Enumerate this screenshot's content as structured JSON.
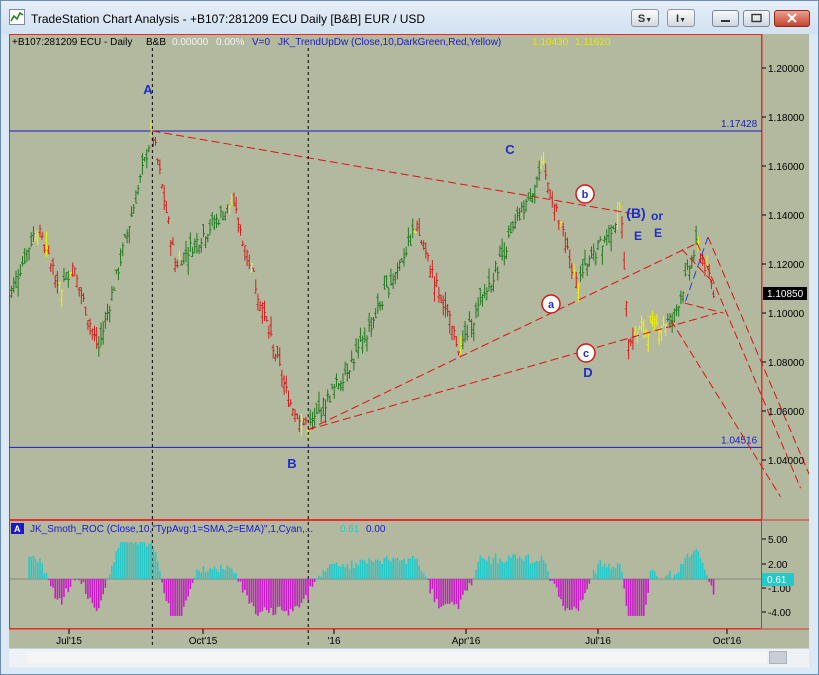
{
  "window": {
    "title": "TradeStation Chart Analysis - +B107:281209 ECU Daily [B&B] EUR / USD",
    "buttons": {
      "s_label": "S",
      "i_label": "I"
    }
  },
  "price_pane": {
    "header": {
      "symbol": "+B107:281209 ECU - Daily",
      "study": "B&B",
      "value": "0.00000",
      "pct": "0.00%",
      "volume": "V=0",
      "indicator": "JK_TrendUpDw (Close,10,DarkGreen,Red,Yellow)",
      "ind_val1": "1.10430",
      "ind_val2": "1.11620"
    },
    "last_price": "1.10850",
    "hline_labels": [
      "1.17428",
      "1.04516"
    ],
    "y_ticks": [
      "1.20000",
      "1.18000",
      "1.16000",
      "1.14000",
      "1.12000",
      "1.10000",
      "1.08000",
      "1.06000",
      "1.04000"
    ],
    "wave_labels": {
      "A": "A",
      "B": "B",
      "C": "C",
      "D": "D",
      "E1": "E",
      "E2": "E",
      "BB": "(B)",
      "or": "or",
      "a": "a",
      "b": "b",
      "c": "c"
    }
  },
  "osc_pane": {
    "marker": "A",
    "indicator": "JK_Smoth_ROC (Close,10,\"TypAvg:1=SMA,2=EMA)\",1,Cyan,...",
    "val1": "0.61",
    "val2": "0.00",
    "y_ticks": [
      "5.00",
      "2.00",
      "-1.00",
      "-4.00"
    ],
    "current": "0.61"
  },
  "x_axis": {
    "labels": [
      "Jul'15",
      "Oct'15",
      "'16",
      "Apr'16",
      "Jul'16",
      "Oct'16"
    ]
  },
  "colors": {
    "plot_bg": "#b3b99f",
    "bull": "#1f7a1f",
    "bear": "#d21e1e",
    "neutral": "#f2f200",
    "wave_label": "#1d2fc7",
    "trend_line": "#dd1111",
    "hline": "#1a1acc",
    "roc_pos": "#26c8c8",
    "roc_neg": "#c41ec4"
  },
  "chart_data": {
    "type": "candlestick-ohlc",
    "symbol": "EUR/USD daily",
    "ylim": [
      1.025,
      1.21
    ],
    "hlines": [
      1.17428,
      1.04516
    ],
    "path": [
      {
        "date": "2015-05-22",
        "price": 1.105
      },
      {
        "date": "2015-06-10",
        "price": 1.135
      },
      {
        "date": "2015-06-26",
        "price": 1.11
      },
      {
        "date": "2015-07-03",
        "price": 1.12
      },
      {
        "date": "2015-07-20",
        "price": 1.085
      },
      {
        "date": "2015-08-24",
        "price": 1.1743
      },
      {
        "date": "2015-09-08",
        "price": 1.12
      },
      {
        "date": "2015-10-15",
        "price": 1.145
      },
      {
        "date": "2015-11-20",
        "price": 1.065
      },
      {
        "date": "2015-12-03",
        "price": 1.0524
      },
      {
        "date": "2016-01-05",
        "price": 1.085
      },
      {
        "date": "2016-02-11",
        "price": 1.135
      },
      {
        "date": "2016-03-10",
        "price": 1.085
      },
      {
        "date": "2016-05-03",
        "price": 1.16
      },
      {
        "date": "2016-05-25",
        "price": 1.112
      },
      {
        "date": "2016-06-23",
        "price": 1.142
      },
      {
        "date": "2016-06-27",
        "price": 1.091
      },
      {
        "date": "2016-07-26",
        "price": 1.097
      },
      {
        "date": "2016-08-11",
        "price": 1.1285
      },
      {
        "date": "2016-08-22",
        "price": 1.1085
      }
    ],
    "roc_ylim": [
      -5.5,
      6.5
    ]
  }
}
